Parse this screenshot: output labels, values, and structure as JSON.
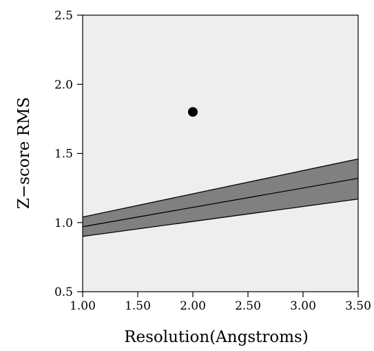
{
  "chart_data": {
    "type": "line",
    "xlabel": "Resolution(Angstroms)",
    "ylabel": "Z−score RMS",
    "xlim": [
      1.0,
      3.5
    ],
    "ylim": [
      0.5,
      2.5
    ],
    "x_ticks": [
      1.0,
      1.5,
      2.0,
      2.5,
      3.0,
      3.5
    ],
    "x_tick_labels": [
      "1.00",
      "1.50",
      "2.00",
      "2.50",
      "3.00",
      "3.50"
    ],
    "y_ticks": [
      0.5,
      1.0,
      1.5,
      2.0,
      2.5
    ],
    "y_tick_labels": [
      "0.5",
      "1.0",
      "1.5",
      "2.0",
      "2.5"
    ],
    "grid": false,
    "band": {
      "x": [
        1.0,
        3.5
      ],
      "center": [
        0.97,
        1.32
      ],
      "lower": [
        0.9,
        1.17
      ],
      "upper": [
        1.04,
        1.46
      ]
    },
    "points": [
      {
        "x": 2.0,
        "y": 1.8
      }
    ],
    "colors": {
      "plot_background": "#eeeeee",
      "band_fill": "#808080",
      "line": "#000000",
      "point": "#000000"
    }
  }
}
